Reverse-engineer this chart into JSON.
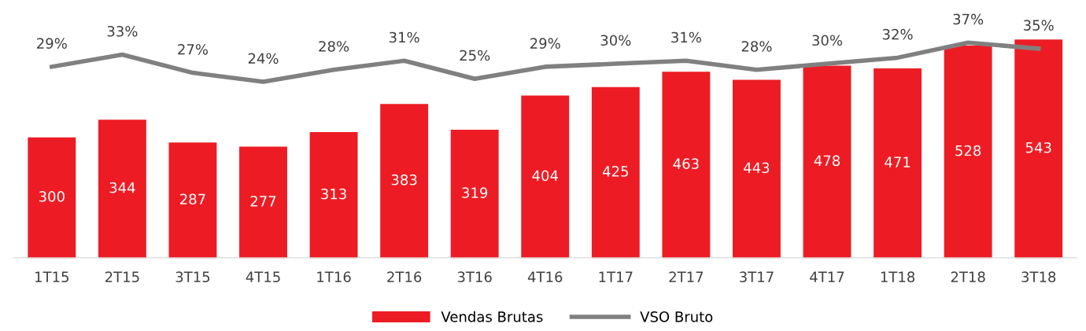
{
  "chart_data": {
    "type": "bar",
    "categories": [
      "1T15",
      "2T15",
      "3T15",
      "4T15",
      "1T16",
      "2T16",
      "3T16",
      "4T16",
      "1T17",
      "2T17",
      "3T17",
      "4T17",
      "1T18",
      "2T18",
      "3T18"
    ],
    "series": [
      {
        "name": "Vendas Brutas",
        "color": "#ed1c24",
        "values": [
          300,
          344,
          287,
          277,
          313,
          383,
          319,
          404,
          425,
          463,
          443,
          478,
          471,
          528,
          543
        ]
      },
      {
        "name": "VSO Bruto",
        "type": "line",
        "axis": "y2",
        "color": "#808080",
        "values": [
          29,
          33,
          27,
          24,
          28,
          31,
          25,
          29,
          30,
          31,
          28,
          30,
          32,
          37,
          35
        ],
        "value_labels": [
          "29%",
          "33%",
          "27%",
          "24%",
          "28%",
          "31%",
          "25%",
          "29%",
          "30%",
          "31%",
          "28%",
          "30%",
          "32%",
          "37%",
          "35%"
        ]
      }
    ],
    "data_labels": true,
    "tick_labels": "x",
    "grid": false,
    "legend": "bottom",
    "marker": "none"
  }
}
